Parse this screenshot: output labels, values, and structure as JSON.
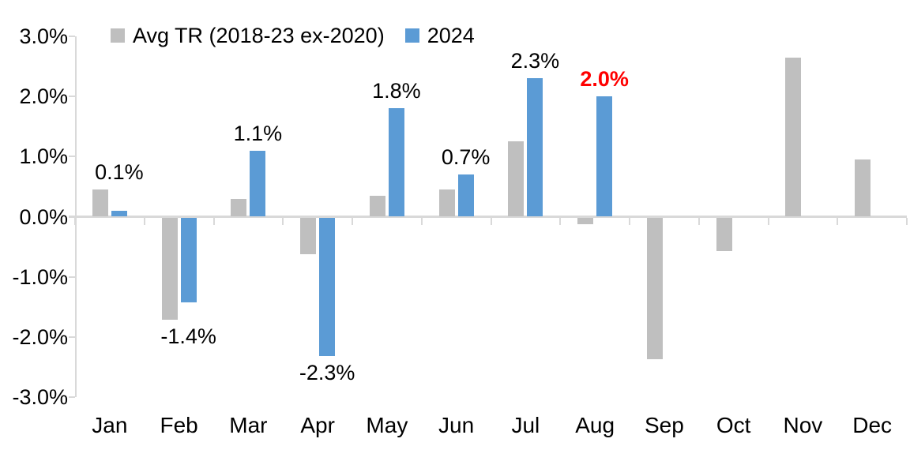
{
  "chart_data": {
    "type": "bar",
    "title": "",
    "categories": [
      "Jan",
      "Feb",
      "Mar",
      "Apr",
      "May",
      "Jun",
      "Jul",
      "Aug",
      "Sep",
      "Oct",
      "Nov",
      "Dec"
    ],
    "y_axis": {
      "tick_labels": [
        "3.0%",
        "2.0%",
        "1.0%",
        "0.0%",
        "-1.0%",
        "-2.0%",
        "-3.0%"
      ],
      "tick_values": [
        3,
        2,
        1,
        0,
        -1,
        -2,
        -3
      ],
      "min": -3,
      "max": 3,
      "unit": "%"
    },
    "grid": false,
    "legend_position": "top",
    "series": [
      {
        "name": "Avg TR (2018-23 ex-2020)",
        "color": "#BFBFBF",
        "values": [
          0.45,
          -1.7,
          0.3,
          -0.6,
          0.35,
          0.45,
          1.25,
          -0.1,
          -2.35,
          -0.55,
          2.65,
          0.95
        ]
      },
      {
        "name": "2024",
        "color": "#5B9BD5",
        "values": [
          0.1,
          -1.4,
          1.1,
          -2.3,
          1.8,
          0.7,
          2.3,
          2.0,
          null,
          null,
          null,
          null
        ]
      }
    ],
    "data_labels": [
      {
        "index": 0,
        "text": "0.1%",
        "color": "#000000",
        "bold": false
      },
      {
        "index": 1,
        "text": "-1.4%",
        "color": "#000000",
        "bold": false
      },
      {
        "index": 2,
        "text": "1.1%",
        "color": "#000000",
        "bold": false
      },
      {
        "index": 3,
        "text": "-2.3%",
        "color": "#000000",
        "bold": false
      },
      {
        "index": 4,
        "text": "1.8%",
        "color": "#000000",
        "bold": false
      },
      {
        "index": 5,
        "text": "0.7%",
        "color": "#000000",
        "bold": false
      },
      {
        "index": 6,
        "text": "2.3%",
        "color": "#000000",
        "bold": false
      },
      {
        "index": 7,
        "text": "2.0%",
        "color": "#FF0000",
        "bold": true
      }
    ],
    "colors": {
      "axis": "#D9D9D9",
      "text": "#000000",
      "highlight": "#FF0000",
      "background": "#FFFFFF"
    }
  }
}
